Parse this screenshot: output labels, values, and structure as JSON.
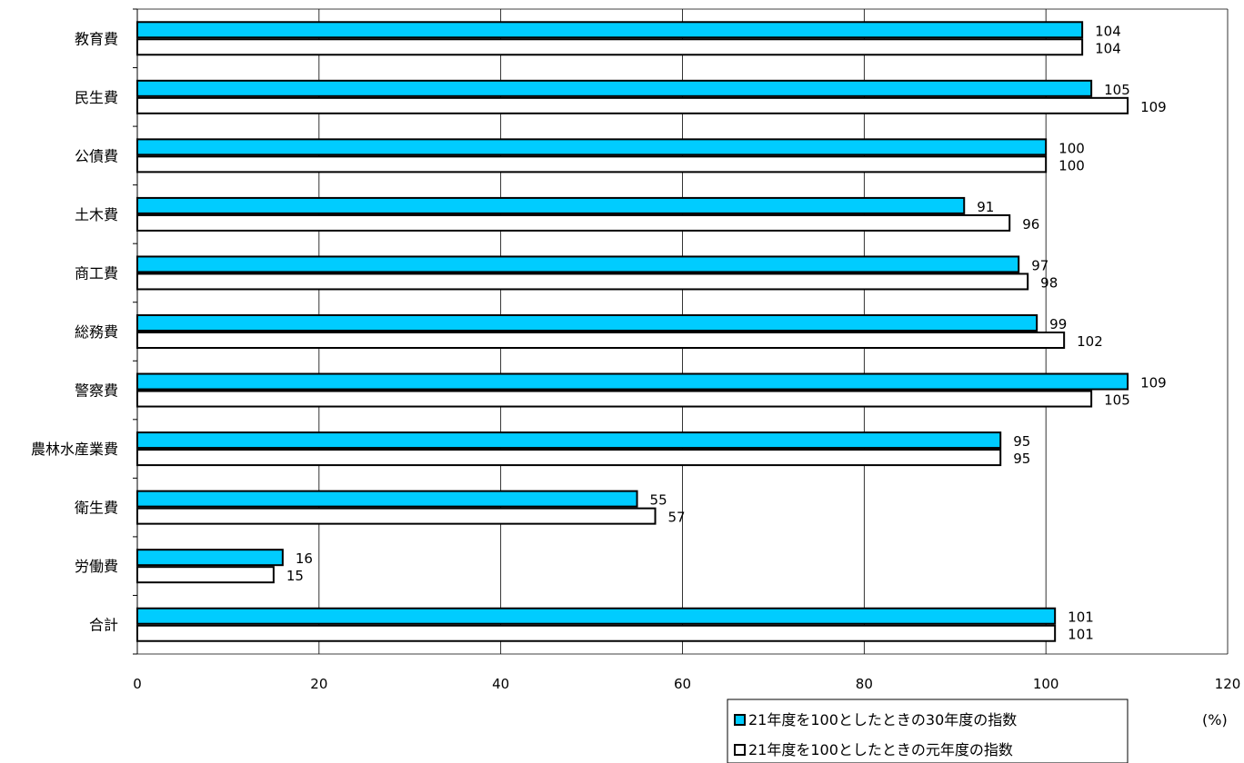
{
  "chart_data": {
    "type": "bar",
    "orientation": "horizontal",
    "categories": [
      "教育費",
      "民生費",
      "公債費",
      "土木費",
      "商工費",
      "総務費",
      "警察費",
      "農林水産業費",
      "衛生費",
      "労働費",
      "合計"
    ],
    "series": [
      {
        "name": "21年度を100としたときの30年度の指数",
        "values": [
          104,
          105,
          100,
          91,
          97,
          99,
          109,
          95,
          55,
          16,
          101
        ],
        "color": "#00ccff"
      },
      {
        "name": "21年度を100としたときの元年度の指数",
        "values": [
          104,
          109,
          100,
          96,
          98,
          102,
          105,
          95,
          57,
          15,
          101
        ],
        "color": "#ffffff"
      }
    ],
    "xlim": [
      0,
      120
    ],
    "xticks": [
      "0",
      "20",
      "40",
      "60",
      "80",
      "100",
      "120"
    ],
    "unit_label": "(%)",
    "grid": true,
    "legend_position": "bottom-right"
  }
}
